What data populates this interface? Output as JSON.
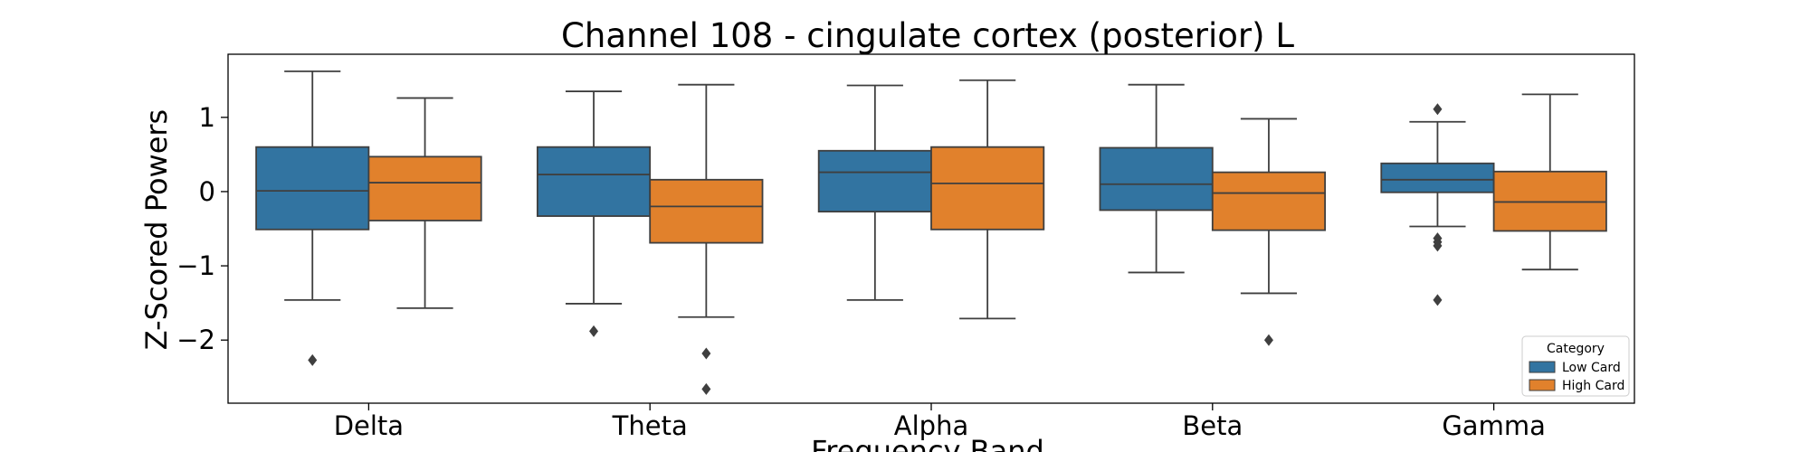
{
  "chart_data": {
    "type": "box",
    "title": "Channel 108 - cingulate cortex (posterior) L",
    "xlabel": "Frequency Band",
    "ylabel": "Z-Scored Powers",
    "categories": [
      "Delta",
      "Theta",
      "Alpha",
      "Beta",
      "Gamma"
    ],
    "ylim": [
      -2.85,
      1.85
    ],
    "yticks": [
      1,
      0,
      -1,
      -2
    ],
    "ytick_labels": [
      "1",
      "0",
      "−1",
      "−2"
    ],
    "grid": false,
    "legend": {
      "title": "Category",
      "placement": "lower-right",
      "entries": [
        "Low Card",
        "High Card"
      ]
    },
    "series": [
      {
        "name": "Low Card",
        "color": "#3274a1",
        "boxes": [
          {
            "whisker_low": -1.46,
            "q1": -0.51,
            "median": 0.01,
            "q3": 0.6,
            "whisker_high": 1.62,
            "outliers": [
              -2.27
            ]
          },
          {
            "whisker_low": -1.51,
            "q1": -0.33,
            "median": 0.23,
            "q3": 0.6,
            "whisker_high": 1.35,
            "outliers": [
              -1.88
            ]
          },
          {
            "whisker_low": -1.46,
            "q1": -0.27,
            "median": 0.26,
            "q3": 0.55,
            "whisker_high": 1.43,
            "outliers": []
          },
          {
            "whisker_low": -1.09,
            "q1": -0.25,
            "median": 0.1,
            "q3": 0.59,
            "whisker_high": 1.44,
            "outliers": []
          },
          {
            "whisker_low": -0.47,
            "q1": -0.01,
            "median": 0.16,
            "q3": 0.38,
            "whisker_high": 0.94,
            "outliers": [
              1.11,
              -0.63,
              -0.68,
              -0.73,
              -1.46
            ]
          }
        ]
      },
      {
        "name": "High Card",
        "color": "#e1812c",
        "boxes": [
          {
            "whisker_low": -1.57,
            "q1": -0.39,
            "median": 0.12,
            "q3": 0.47,
            "whisker_high": 1.26,
            "outliers": []
          },
          {
            "whisker_low": -1.69,
            "q1": -0.69,
            "median": -0.2,
            "q3": 0.16,
            "whisker_high": 1.44,
            "outliers": [
              -2.18,
              -2.66
            ]
          },
          {
            "whisker_low": -1.71,
            "q1": -0.51,
            "median": 0.11,
            "q3": 0.6,
            "whisker_high": 1.5,
            "outliers": []
          },
          {
            "whisker_low": -1.37,
            "q1": -0.52,
            "median": -0.02,
            "q3": 0.26,
            "whisker_high": 0.98,
            "outliers": [
              -2.0
            ]
          },
          {
            "whisker_low": -1.05,
            "q1": -0.53,
            "median": -0.14,
            "q3": 0.27,
            "whisker_high": 1.31,
            "outliers": []
          }
        ]
      }
    ]
  }
}
